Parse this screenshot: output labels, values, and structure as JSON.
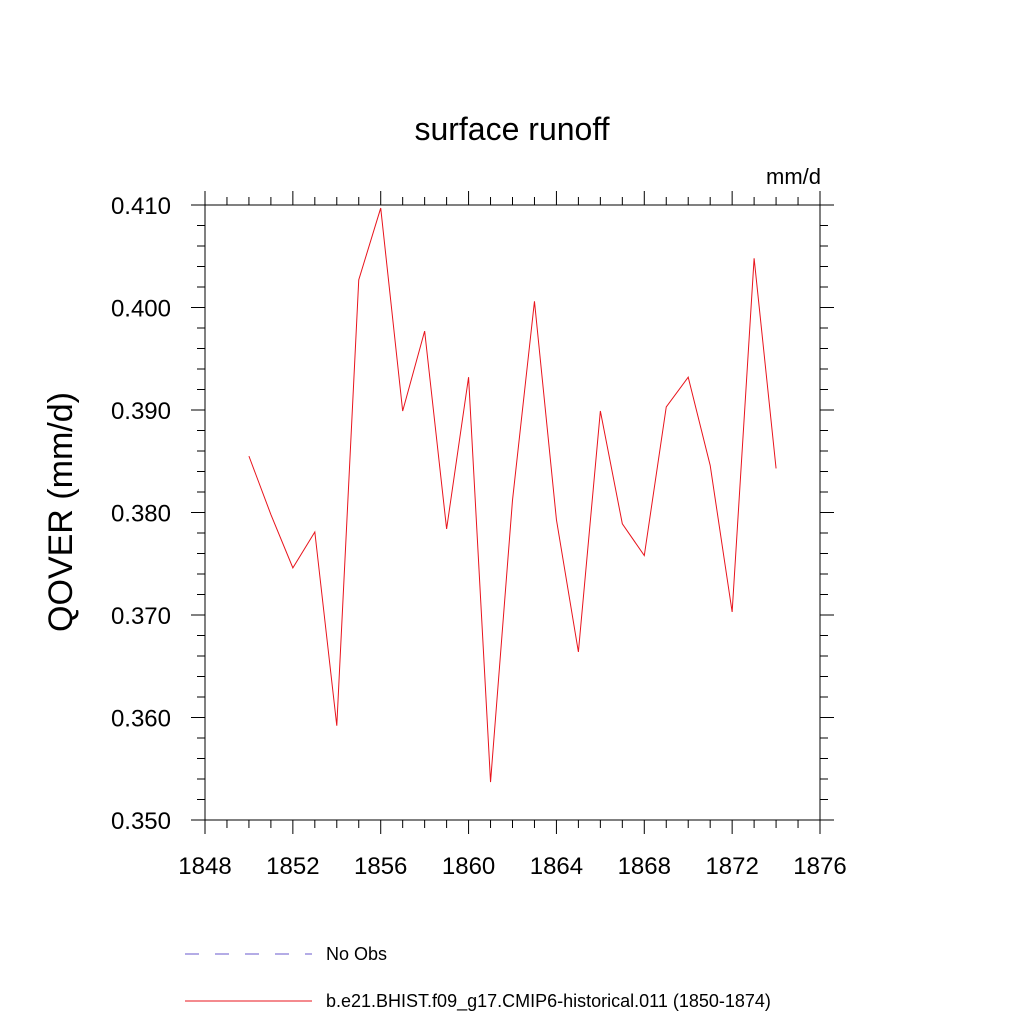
{
  "chart_data": {
    "type": "line",
    "title": "surface runoff",
    "units_label": "mm/d",
    "ylabel": "QOVER  (mm/d)",
    "xlabel": "",
    "xlim": [
      1848,
      1876
    ],
    "ylim": [
      0.35,
      0.41
    ],
    "x_ticks": [
      1848,
      1852,
      1856,
      1860,
      1864,
      1868,
      1872,
      1876
    ],
    "x_tick_labels": [
      "1848",
      "1852",
      "1856",
      "1860",
      "1864",
      "1868",
      "1872",
      "1876"
    ],
    "y_ticks": [
      0.35,
      0.36,
      0.37,
      0.38,
      0.39,
      0.4,
      0.41
    ],
    "y_tick_labels": [
      "0.350",
      "0.360",
      "0.370",
      "0.380",
      "0.390",
      "0.400",
      "0.410"
    ],
    "grid": false,
    "legend_position": "bottom",
    "legend": [
      {
        "label": "No Obs",
        "color": "#6a5acd",
        "style": "dashed"
      },
      {
        "label": "b.e21.BHIST.f09_g17.CMIP6-historical.011 (1850-1874)",
        "color": "#e8141c",
        "style": "solid"
      }
    ],
    "series": [
      {
        "name": "b.e21.BHIST.f09_g17.CMIP6-historical.011 (1850-1874)",
        "color": "#e8141c",
        "x": [
          1850,
          1851,
          1852,
          1853,
          1854,
          1855,
          1856,
          1857,
          1858,
          1859,
          1860,
          1861,
          1862,
          1863,
          1864,
          1865,
          1866,
          1867,
          1868,
          1869,
          1870,
          1871,
          1872,
          1873,
          1874
        ],
        "y": [
          0.3855,
          0.3798,
          0.3746,
          0.3781,
          0.3592,
          0.4027,
          0.4097,
          0.3899,
          0.3977,
          0.3784,
          0.3932,
          0.3537,
          0.3812,
          0.4006,
          0.3793,
          0.3664,
          0.3899,
          0.3789,
          0.3758,
          0.3903,
          0.3932,
          0.3846,
          0.3703,
          0.4048,
          0.3843
        ]
      }
    ]
  }
}
